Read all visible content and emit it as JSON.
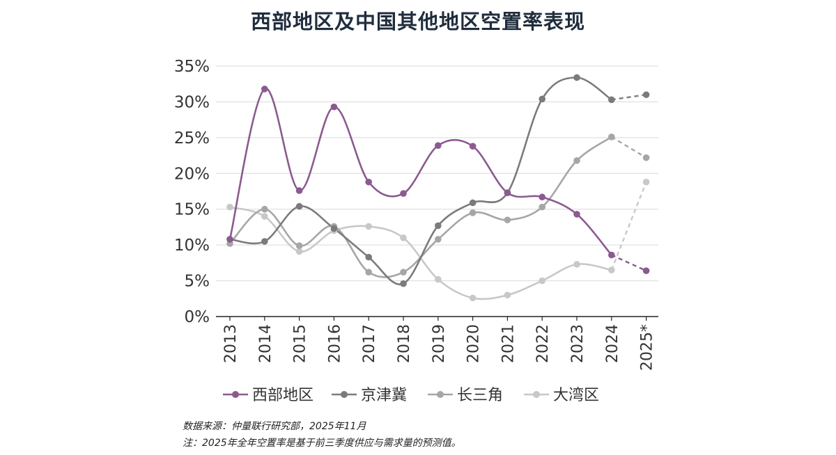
{
  "chart_data": {
    "type": "line",
    "title": "西部地区及中国其他地区空置率表现",
    "xlabel": "",
    "ylabel": "",
    "categories": [
      "2013",
      "2014",
      "2015",
      "2016",
      "2017",
      "2018",
      "2019",
      "2020",
      "2021",
      "2022",
      "2023",
      "2024",
      "2025*"
    ],
    "y_ticks": [
      "0%",
      "5%",
      "10%",
      "15%",
      "20%",
      "25%",
      "30%",
      "35%"
    ],
    "ylim": [
      0,
      35
    ],
    "grid": true,
    "legend_position": "bottom",
    "forecast_from_index": 11,
    "series": [
      {
        "name": "西部地区",
        "color": "#8b5a8f",
        "values": [
          10.8,
          31.8,
          17.6,
          29.3,
          18.8,
          17.2,
          23.9,
          23.8,
          17.3,
          16.7,
          14.3,
          8.6,
          6.4
        ]
      },
      {
        "name": "京津冀",
        "color": "#7b7b7b",
        "values": [
          10.8,
          10.5,
          15.4,
          12.3,
          8.3,
          4.6,
          12.7,
          15.9,
          17.3,
          30.4,
          33.4,
          30.3,
          31.0
        ]
      },
      {
        "name": "长三角",
        "color": "#a6a6a6",
        "values": [
          10.2,
          15.0,
          9.9,
          12.6,
          6.2,
          6.2,
          10.8,
          14.5,
          13.5,
          15.3,
          21.8,
          25.1,
          22.2
        ]
      },
      {
        "name": "大湾区",
        "color": "#c8c8c8",
        "values": [
          15.3,
          14.0,
          9.1,
          12.0,
          12.6,
          11.0,
          5.2,
          2.6,
          3.0,
          5.0,
          7.3,
          6.5,
          18.8
        ]
      }
    ]
  },
  "footnotes": {
    "source": "数据来源：仲量联行研究部，2025年11月",
    "note": "注：2025年全年空置率是基于前三季度供应与需求量的预测值。"
  }
}
